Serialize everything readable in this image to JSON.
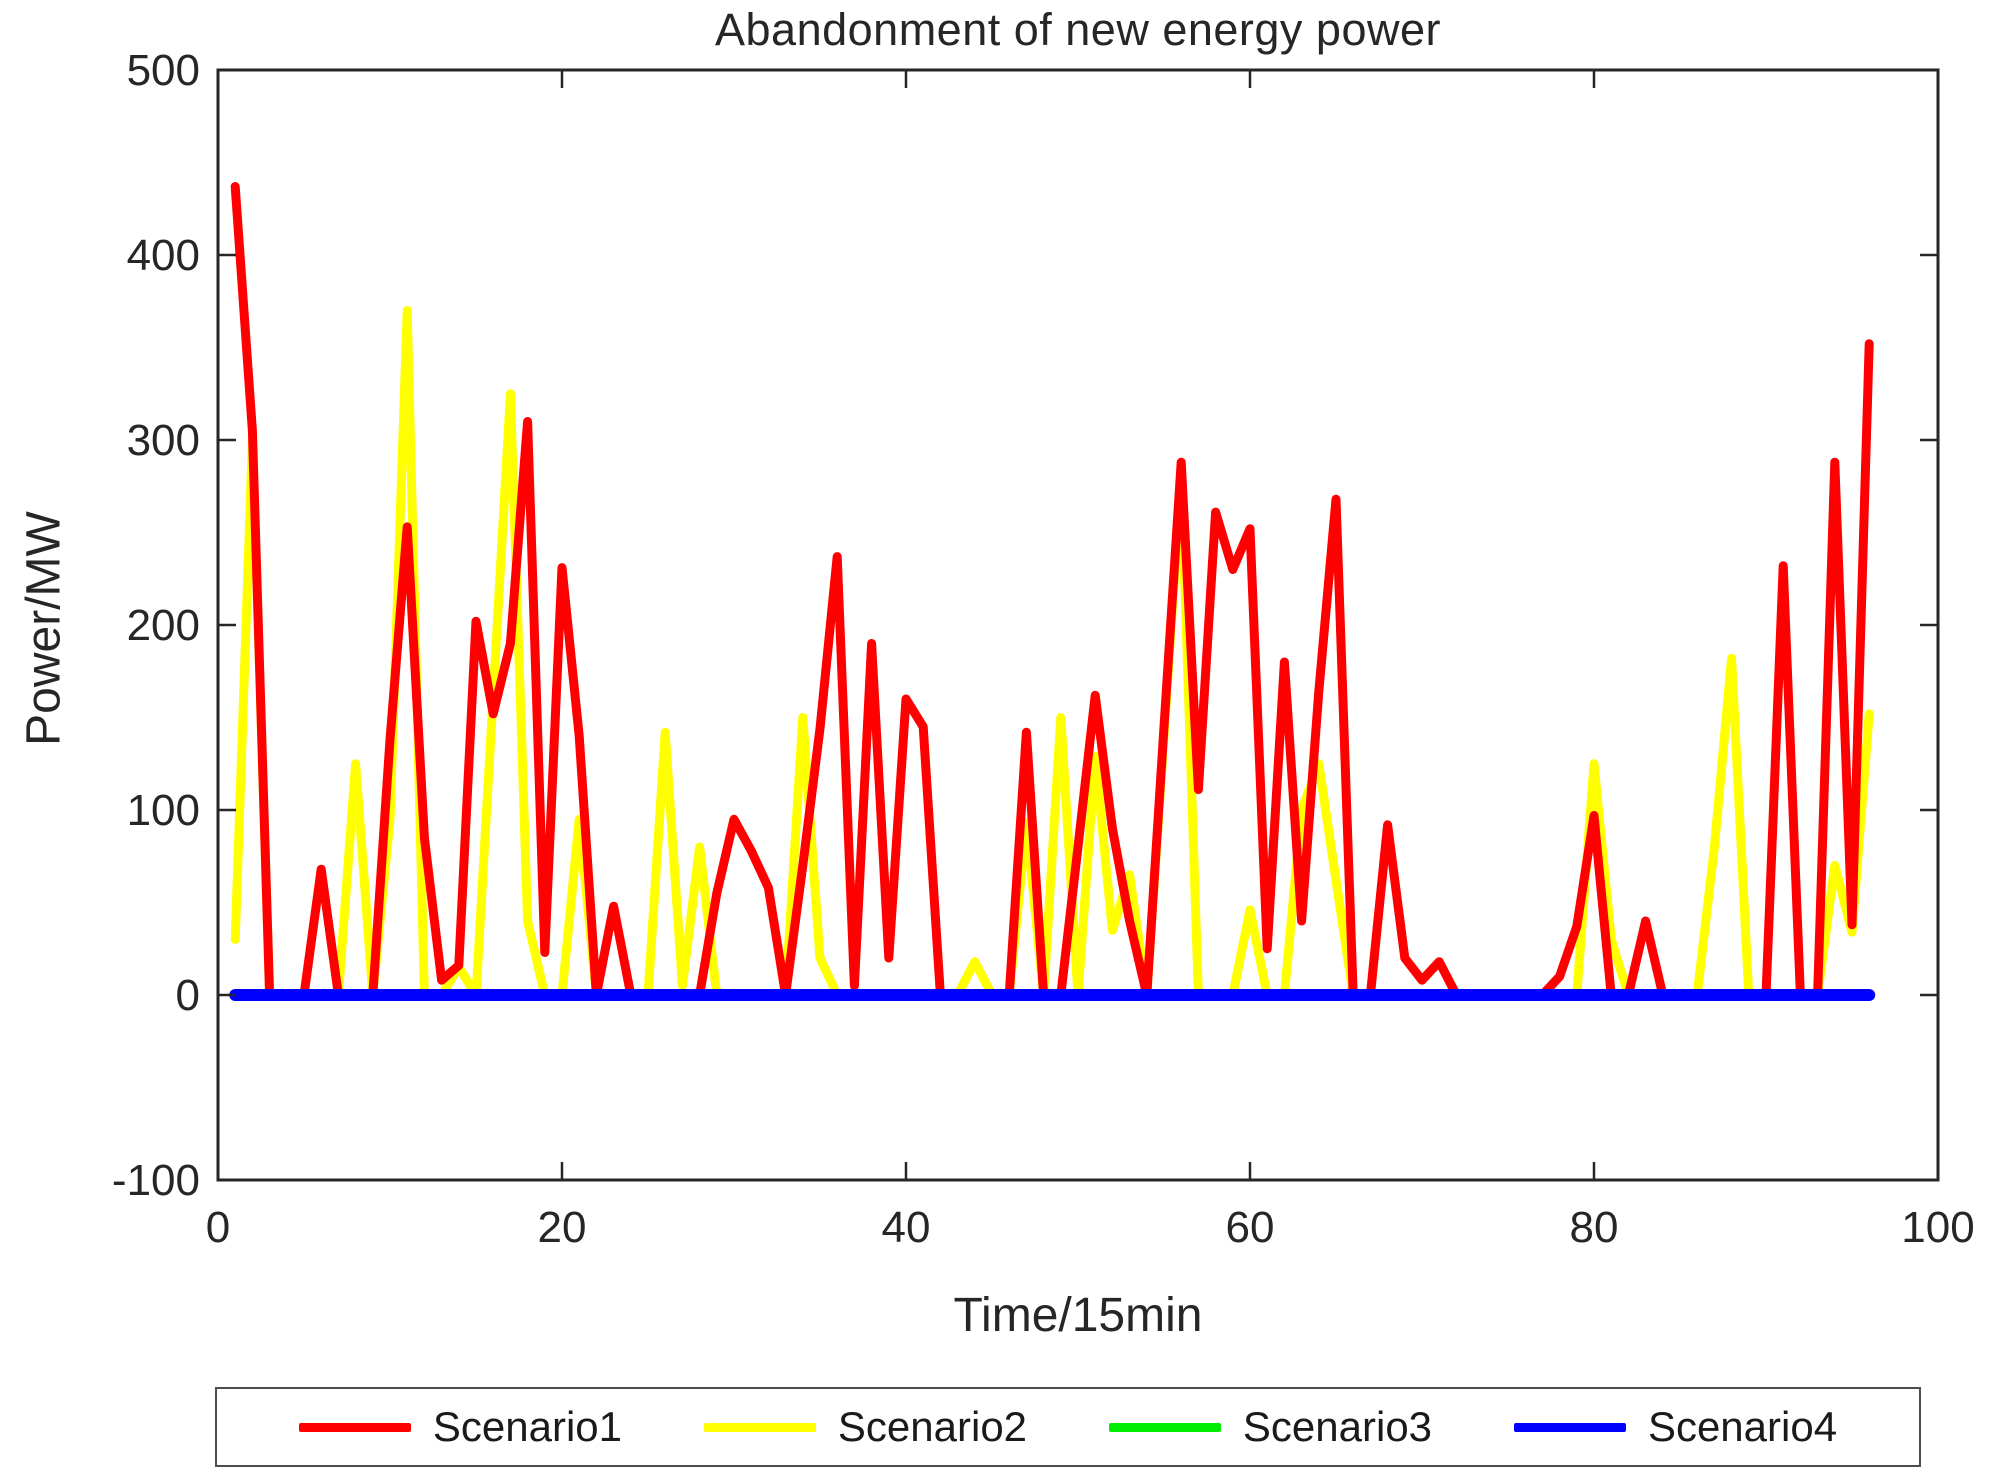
{
  "figure": {
    "title": "Abandonment of new energy power",
    "x_axis_label": "Time/15min",
    "y_axis_label": "Power/MW"
  },
  "chart_data": {
    "type": "line",
    "title": "Abandonment of new energy power",
    "xlabel": "Time/15min",
    "ylabel": "Power/MW",
    "xlim": [
      0,
      100
    ],
    "ylim": [
      -100,
      500
    ],
    "x_ticks": [
      0,
      20,
      40,
      60,
      80,
      100
    ],
    "y_ticks": [
      -100,
      0,
      100,
      200,
      300,
      400,
      500
    ],
    "grid": false,
    "legend_position": "below-chart",
    "axis_color": "#262626",
    "x": [
      1,
      2,
      3,
      4,
      5,
      6,
      7,
      8,
      9,
      10,
      11,
      12,
      13,
      14,
      15,
      16,
      17,
      18,
      19,
      20,
      21,
      22,
      23,
      24,
      25,
      26,
      27,
      28,
      29,
      30,
      31,
      32,
      33,
      34,
      35,
      36,
      37,
      38,
      39,
      40,
      41,
      42,
      43,
      44,
      45,
      46,
      47,
      48,
      49,
      50,
      51,
      52,
      53,
      54,
      55,
      56,
      57,
      58,
      59,
      60,
      61,
      62,
      63,
      64,
      65,
      66,
      67,
      68,
      69,
      70,
      71,
      72,
      73,
      74,
      75,
      76,
      77,
      78,
      79,
      80,
      81,
      82,
      83,
      84,
      85,
      86,
      87,
      88,
      89,
      90,
      91,
      92,
      93,
      94,
      95,
      96
    ],
    "series": [
      {
        "name": "Scenario1",
        "color": "#ff0000",
        "line_width": 9,
        "values": [
          437,
          305,
          0,
          0,
          0,
          68,
          0,
          0,
          0,
          138,
          253,
          85,
          8,
          16,
          202,
          152,
          190,
          310,
          23,
          231,
          140,
          0,
          48,
          0,
          0,
          0,
          0,
          0,
          55,
          95,
          78,
          58,
          0,
          70,
          144,
          237,
          5,
          190,
          20,
          160,
          145,
          0,
          0,
          0,
          0,
          0,
          142,
          0,
          0,
          80,
          162,
          90,
          40,
          0,
          145,
          288,
          111,
          261,
          230,
          252,
          25,
          180,
          40,
          164,
          268,
          0,
          0,
          92,
          20,
          8,
          18,
          0,
          0,
          0,
          0,
          0,
          0,
          10,
          37,
          97,
          0,
          0,
          40,
          0,
          0,
          0,
          0,
          0,
          0,
          0,
          232,
          0,
          0,
          288,
          38,
          352
        ]
      },
      {
        "name": "Scenario2",
        "color": "#ffff00",
        "line_width": 9,
        "values": [
          30,
          300,
          0,
          0,
          0,
          0,
          0,
          125,
          0,
          95,
          370,
          0,
          0,
          15,
          0,
          162,
          325,
          40,
          0,
          0,
          95,
          0,
          0,
          0,
          0,
          142,
          5,
          80,
          0,
          0,
          0,
          0,
          0,
          150,
          20,
          0,
          0,
          0,
          0,
          0,
          0,
          0,
          0,
          18,
          0,
          0,
          93,
          0,
          150,
          0,
          129,
          35,
          65,
          0,
          140,
          282,
          0,
          0,
          0,
          46,
          0,
          0,
          100,
          125,
          62,
          0,
          0,
          0,
          0,
          0,
          0,
          0,
          0,
          0,
          0,
          0,
          0,
          0,
          0,
          125,
          30,
          0,
          0,
          0,
          0,
          0,
          80,
          182,
          0,
          0,
          0,
          0,
          0,
          70,
          34,
          152
        ]
      },
      {
        "name": "Scenario3",
        "color": "#00ee00",
        "line_width": 9,
        "values": [
          0,
          0,
          0,
          0,
          0,
          0,
          0,
          0,
          0,
          0,
          0,
          0,
          0,
          0,
          0,
          0,
          0,
          0,
          0,
          0,
          0,
          0,
          0,
          0,
          0,
          0,
          0,
          0,
          0,
          0,
          0,
          0,
          0,
          0,
          0,
          0,
          0,
          0,
          0,
          0,
          0,
          0,
          0,
          0,
          0,
          0,
          0,
          0,
          0,
          0,
          0,
          0,
          0,
          0,
          0,
          0,
          0,
          0,
          0,
          0,
          0,
          0,
          0,
          0,
          0,
          0,
          0,
          0,
          0,
          0,
          0,
          0,
          0,
          0,
          0,
          0,
          0,
          0,
          0,
          0,
          0,
          0,
          0,
          0,
          0,
          0,
          0,
          0,
          0,
          0,
          0,
          0,
          0,
          0,
          0,
          0
        ]
      },
      {
        "name": "Scenario4",
        "color": "#0000ff",
        "line_width": 12,
        "values": [
          0,
          0,
          0,
          0,
          0,
          0,
          0,
          0,
          0,
          0,
          0,
          0,
          0,
          0,
          0,
          0,
          0,
          0,
          0,
          0,
          0,
          0,
          0,
          0,
          0,
          0,
          0,
          0,
          0,
          0,
          0,
          0,
          0,
          0,
          0,
          0,
          0,
          0,
          0,
          0,
          0,
          0,
          0,
          0,
          0,
          0,
          0,
          0,
          0,
          0,
          0,
          0,
          0,
          0,
          0,
          0,
          0,
          0,
          0,
          0,
          0,
          0,
          0,
          0,
          0,
          0,
          0,
          0,
          0,
          0,
          0,
          0,
          0,
          0,
          0,
          0,
          0,
          0,
          0,
          0,
          0,
          0,
          0,
          0,
          0,
          0,
          0,
          0,
          0,
          0,
          0,
          0,
          0,
          0,
          0,
          0
        ]
      }
    ]
  }
}
